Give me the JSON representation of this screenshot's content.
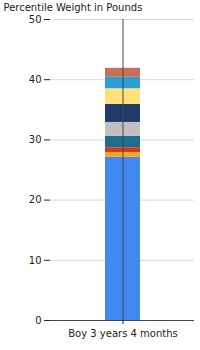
{
  "chart_data": {
    "type": "bar",
    "stacked": true,
    "ylabel": "Percentile Weight in Pounds",
    "categories": [
      "Boy 3 years 4 months"
    ],
    "series": [
      {
        "color": "#4189ee",
        "values": [
          27.1
        ]
      },
      {
        "color": "#f5a623",
        "values": [
          0.8
        ]
      },
      {
        "color": "#d9391a",
        "values": [
          0.8
        ]
      },
      {
        "color": "#1f6e8c",
        "values": [
          1.9
        ]
      },
      {
        "color": "#c0c0c0",
        "values": [
          2.3
        ]
      },
      {
        "color": "#1f3a6b",
        "values": [
          3.0
        ]
      },
      {
        "color": "#ffe07a",
        "values": [
          2.6
        ]
      },
      {
        "color": "#2a9fd6",
        "values": [
          1.9
        ]
      },
      {
        "color": "#c8705a",
        "values": [
          1.5
        ]
      }
    ],
    "ylim": [
      0,
      50
    ],
    "yticks": [
      0,
      10,
      20,
      30,
      40,
      50
    ],
    "grid": true
  }
}
